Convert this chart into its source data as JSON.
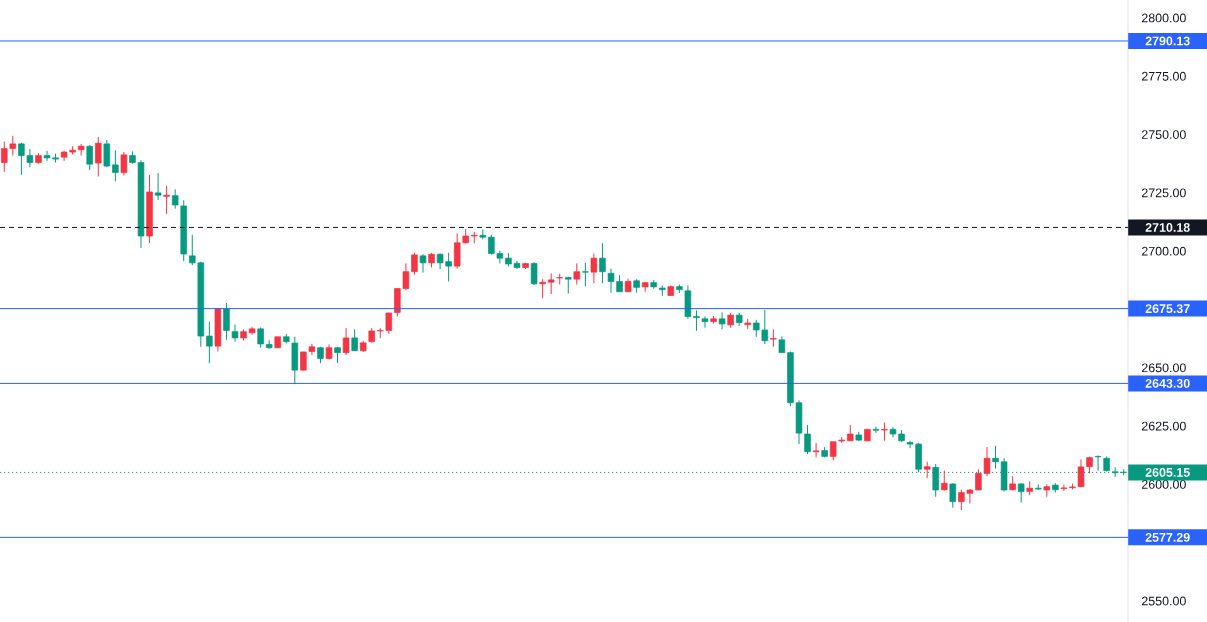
{
  "chart_data": {
    "type": "candlestick",
    "categories": [
      null,
      null,
      null,
      null,
      null,
      null,
      null,
      null,
      null,
      null,
      null,
      null,
      null,
      null,
      null,
      null,
      null,
      null,
      null,
      null,
      null,
      null,
      null,
      null,
      null,
      null,
      null,
      null,
      null,
      null,
      null,
      null,
      null,
      null,
      null,
      null,
      null,
      null,
      null,
      null,
      null,
      null,
      null,
      null,
      null,
      null,
      null,
      null,
      null,
      null,
      null,
      null,
      null,
      null,
      null,
      null,
      null,
      null,
      null,
      null,
      null,
      null,
      null,
      null,
      null,
      null,
      null,
      null,
      null,
      null,
      null,
      null,
      null,
      null,
      null,
      null,
      null,
      null,
      null,
      null,
      null,
      null,
      null,
      null,
      null,
      null,
      null,
      null,
      null,
      null,
      null,
      null,
      null,
      null,
      null,
      null,
      null,
      null,
      null,
      null,
      null,
      null,
      null,
      null,
      null,
      null,
      null,
      null,
      null,
      null,
      null,
      null,
      null,
      null,
      null,
      null,
      null,
      null,
      null,
      null,
      null,
      null,
      null,
      null,
      null,
      null,
      null,
      null,
      null,
      null,
      null,
      null
    ],
    "ohlc": [
      [
        2738,
        2747,
        2734,
        2744
      ],
      [
        2744,
        2749.5,
        2741,
        2746
      ],
      [
        2746,
        2746.5,
        2732.7,
        2741
      ],
      [
        2741,
        2743.8,
        2736,
        2738
      ],
      [
        2738,
        2742,
        2737.5,
        2741
      ],
      [
        2741,
        2743,
        2738.7,
        2740
      ],
      [
        2740,
        2741.8,
        2738,
        2739.5
      ],
      [
        2740.3,
        2743,
        2738.7,
        2742.5
      ],
      [
        2742.5,
        2745,
        2741.5,
        2743.3
      ],
      [
        2743.5,
        2746,
        2741,
        2745
      ],
      [
        2745,
        2745.5,
        2734.8,
        2737.3
      ],
      [
        2737.8,
        2749,
        2732,
        2746.3
      ],
      [
        2746,
        2747.7,
        2736,
        2736.5
      ],
      [
        2737,
        2743.3,
        2730,
        2733.7
      ],
      [
        2733.7,
        2742.5,
        2732.5,
        2741.3
      ],
      [
        2741,
        2742.8,
        2737.5,
        2738
      ],
      [
        2738,
        2739,
        2701.4,
        2706.5
      ],
      [
        2706.5,
        2732.7,
        2703.5,
        2725.4
      ],
      [
        2725,
        2733.5,
        2722,
        2724
      ],
      [
        2723.5,
        2728,
        2716,
        2724
      ],
      [
        2723.8,
        2726.5,
        2718.2,
        2719.8
      ],
      [
        2719.4,
        2721.8,
        2695.7,
        2698.8
      ],
      [
        2698,
        2707,
        2694,
        2695
      ],
      [
        2695,
        2695.5,
        2659,
        2663.6
      ],
      [
        2663.6,
        2669.8,
        2652,
        2659.3
      ],
      [
        2659.3,
        2675.2,
        2657,
        2675.2
      ],
      [
        2675.2,
        2677.8,
        2662,
        2666
      ],
      [
        2665.5,
        2668.6,
        2661.2,
        2662.8
      ],
      [
        2662.8,
        2666.5,
        2661.7,
        2665.5
      ],
      [
        2665,
        2667.5,
        2664.2,
        2666.7
      ],
      [
        2666.7,
        2667.3,
        2658.6,
        2660.2
      ],
      [
        2660,
        2661.8,
        2658.2,
        2658.6
      ],
      [
        2658.6,
        2663.3,
        2658.4,
        2663.3
      ],
      [
        2663.3,
        2664.5,
        2660.5,
        2661.2
      ],
      [
        2660.6,
        2663.3,
        2643,
        2649
      ],
      [
        2649,
        2656.8,
        2648.8,
        2656.8
      ],
      [
        2657,
        2660.3,
        2655.5,
        2659
      ],
      [
        2658.6,
        2659,
        2652,
        2654
      ],
      [
        2654,
        2660,
        2653.5,
        2658.6
      ],
      [
        2658.6,
        2659,
        2652,
        2656.5
      ],
      [
        2656.5,
        2667,
        2655.5,
        2662.8
      ],
      [
        2662.8,
        2666.5,
        2657.3,
        2657.3
      ],
      [
        2657.3,
        2661.5,
        2656.8,
        2660.7
      ],
      [
        2661.2,
        2667,
        2660.8,
        2665.8
      ],
      [
        2665.8,
        2667,
        2662.7,
        2666
      ],
      [
        2666,
        2673.6,
        2664.6,
        2673.5
      ],
      [
        2673.7,
        2684,
        2672,
        2684
      ],
      [
        2684,
        2694.8,
        2683.3,
        2691.2
      ],
      [
        2691.2,
        2699.3,
        2689.9,
        2698.4
      ],
      [
        2698,
        2698.7,
        2690.8,
        2695
      ],
      [
        2695,
        2699.3,
        2693,
        2698.7
      ],
      [
        2698.7,
        2699,
        2692.3,
        2695
      ],
      [
        2695.5,
        2699.3,
        2687,
        2693.6
      ],
      [
        2693.6,
        2707.6,
        2692.5,
        2703.6
      ],
      [
        2703.6,
        2709.5,
        2703.3,
        2706.5
      ],
      [
        2706.5,
        2708.3,
        2703.3,
        2706.8
      ],
      [
        2706.8,
        2709.3,
        2705,
        2706
      ],
      [
        2706,
        2707,
        2698.5,
        2699
      ],
      [
        2699,
        2700.2,
        2694.8,
        2697
      ],
      [
        2697,
        2699.2,
        2693.5,
        2694.5
      ],
      [
        2694.8,
        2695.8,
        2692.4,
        2693
      ],
      [
        2693,
        2695,
        2692.4,
        2694.7
      ],
      [
        2694.7,
        2695.3,
        2685.5,
        2686
      ],
      [
        2686,
        2688,
        2679.8,
        2686.7
      ],
      [
        2686.7,
        2690.5,
        2681.6,
        2687.7
      ],
      [
        2688.5,
        2690.3,
        2685.7,
        2688.7
      ],
      [
        2688.7,
        2689,
        2681.8,
        2688
      ],
      [
        2688,
        2694.8,
        2685.7,
        2691.2
      ],
      [
        2691.2,
        2695,
        2685,
        2691
      ],
      [
        2691,
        2699,
        2686.3,
        2697
      ],
      [
        2697,
        2703.4,
        2686.3,
        2691.2
      ],
      [
        2690.5,
        2692.5,
        2682.2,
        2687
      ],
      [
        2687,
        2689.7,
        2682.6,
        2682.6
      ],
      [
        2682.6,
        2688.2,
        2682.6,
        2687
      ],
      [
        2687.3,
        2688,
        2682.2,
        2684.5
      ],
      [
        2684.7,
        2686.8,
        2682.6,
        2686.5
      ],
      [
        2686.5,
        2687.6,
        2683.9,
        2684.7
      ],
      [
        2684.2,
        2685.3,
        2680.8,
        2683.5
      ],
      [
        2681,
        2685.3,
        2681,
        2684.8
      ],
      [
        2684.8,
        2685.7,
        2682,
        2683.5
      ],
      [
        2683,
        2685.3,
        2671,
        2672
      ],
      [
        2672,
        2674.6,
        2665.8,
        2671.5
      ],
      [
        2671,
        2672,
        2667.2,
        2669.8
      ],
      [
        2669.8,
        2672.2,
        2669,
        2671
      ],
      [
        2671,
        2673.7,
        2666.5,
        2668.8
      ],
      [
        2668.4,
        2673.5,
        2667.2,
        2672.6
      ],
      [
        2672.6,
        2673.5,
        2668,
        2669.4
      ],
      [
        2668.5,
        2671,
        2666.7,
        2669.2
      ],
      [
        2669.2,
        2670.6,
        2663.3,
        2666.2
      ],
      [
        2666.2,
        2674.8,
        2660.2,
        2661.6
      ],
      [
        2662.3,
        2666.5,
        2659,
        2662.6
      ],
      [
        2662,
        2663.5,
        2656.5,
        2656.5
      ],
      [
        2656.5,
        2657,
        2633.6,
        2635
      ],
      [
        2635,
        2636,
        2617.3,
        2622
      ],
      [
        2621.6,
        2625.5,
        2613,
        2614
      ],
      [
        2614,
        2617.7,
        2611.6,
        2614.4
      ],
      [
        2614.5,
        2616,
        2611.6,
        2612
      ],
      [
        2612,
        2618.3,
        2610.3,
        2618.3
      ],
      [
        2618.6,
        2620.3,
        2617.7,
        2619
      ],
      [
        2618.7,
        2625.5,
        2618.7,
        2621.6
      ],
      [
        2621.2,
        2622.6,
        2618.5,
        2619
      ],
      [
        2618.7,
        2623.6,
        2618.5,
        2623.6
      ],
      [
        2623.6,
        2624.7,
        2622.1,
        2623.2
      ],
      [
        2623.3,
        2626.5,
        2618.7,
        2623.6
      ],
      [
        2623.6,
        2624.5,
        2620.2,
        2621.6
      ],
      [
        2621.6,
        2623.3,
        2618.3,
        2618.7
      ],
      [
        2618,
        2618.7,
        2615.5,
        2617.3
      ],
      [
        2617.3,
        2617.8,
        2605.2,
        2606.5
      ],
      [
        2606.5,
        2609.7,
        2602.7,
        2607.6
      ],
      [
        2607.3,
        2608.7,
        2594.7,
        2597.6
      ],
      [
        2597.7,
        2605.9,
        2597.3,
        2600.5
      ],
      [
        2600.2,
        2600.5,
        2590,
        2592.6
      ],
      [
        2592.6,
        2597.7,
        2589,
        2596.5
      ],
      [
        2596.2,
        2598,
        2591.8,
        2597.6
      ],
      [
        2597.6,
        2606.5,
        2597.5,
        2604.7
      ],
      [
        2604.7,
        2616,
        2603.5,
        2611.2
      ],
      [
        2611.2,
        2616.5,
        2606.8,
        2609.7
      ],
      [
        2609.7,
        2611.2,
        2597,
        2597.6
      ],
      [
        2597.7,
        2603.5,
        2597.5,
        2600.2
      ],
      [
        2600.2,
        2600.5,
        2592.2,
        2596.9
      ],
      [
        2597,
        2601.3,
        2595.4,
        2598.4
      ],
      [
        2598.4,
        2600,
        2597.7,
        2598
      ],
      [
        2597.6,
        2600,
        2594.7,
        2599
      ],
      [
        2599.7,
        2600.5,
        2596.5,
        2597.7
      ],
      [
        2598.2,
        2599.9,
        2597.2,
        2598.5
      ],
      [
        2598.6,
        2600.3,
        2597.8,
        2598.9
      ],
      [
        2599,
        2610.7,
        2598.8,
        2607.5
      ],
      [
        2607.6,
        2611.9,
        2604.7,
        2611.5
      ],
      [
        2612,
        2612.4,
        2605.9,
        2611.8
      ],
      [
        2611.2,
        2612,
        2605.5,
        2605.9
      ],
      [
        2605.4,
        2607.3,
        2603.2,
        2605
      ],
      [
        2605.2,
        2606.5,
        2603.9,
        2605.15
      ]
    ],
    "colors": [
      "#f23645",
      "#f23645",
      "#089981",
      "#089981",
      "#f23645",
      "#089981",
      "#089981",
      "#f23645",
      "#f23645",
      "#f23645",
      "#089981",
      "#f23645",
      "#089981",
      "#089981",
      "#f23645",
      "#089981",
      "#089981",
      "#f23645",
      "#089981",
      "#f23645",
      "#089981",
      "#089981",
      "#089981",
      "#089981",
      "#089981",
      "#f23645",
      "#089981",
      "#089981",
      "#f23645",
      "#f23645",
      "#089981",
      "#089981",
      "#f23645",
      "#089981",
      "#089981",
      "#f23645",
      "#f23645",
      "#089981",
      "#f23645",
      "#089981",
      "#f23645",
      "#089981",
      "#f23645",
      "#f23645",
      "#f23645",
      "#f23645",
      "#f23645",
      "#f23645",
      "#f23645",
      "#089981",
      "#f23645",
      "#089981",
      "#089981",
      "#f23645",
      "#f23645",
      "#f23645",
      "#089981",
      "#089981",
      "#089981",
      "#089981",
      "#089981",
      "#f23645",
      "#089981",
      "#f23645",
      "#f23645",
      "#f23645",
      "#089981",
      "#f23645",
      "#089981",
      "#f23645",
      "#089981",
      "#089981",
      "#089981",
      "#f23645",
      "#089981",
      "#f23645",
      "#089981",
      "#089981",
      "#f23645",
      "#089981",
      "#089981",
      "#089981",
      "#089981",
      "#f23645",
      "#089981",
      "#f23645",
      "#089981",
      "#f23645",
      "#089981",
      "#089981",
      "#f23645",
      "#089981",
      "#089981",
      "#089981",
      "#089981",
      "#f23645",
      "#089981",
      "#f23645",
      "#f23645",
      "#f23645",
      "#089981",
      "#f23645",
      "#089981",
      "#f23645",
      "#089981",
      "#089981",
      "#089981",
      "#089981",
      "#f23645",
      "#089981",
      "#f23645",
      "#089981",
      "#f23645",
      "#f23645",
      "#f23645",
      "#f23645",
      "#089981",
      "#089981",
      "#f23645",
      "#089981",
      "#f23645",
      "#089981",
      "#f23645",
      "#089981",
      "#f23645",
      "#f23645",
      "#f23645",
      "#f23645",
      "#089981",
      "#089981",
      "#089981",
      "#089981"
    ],
    "ylim": [
      2541,
      2807.7
    ],
    "yticks": [
      {
        "value": 2550,
        "label": "2550.00"
      },
      {
        "value": 2600,
        "label": "2600.00"
      },
      {
        "value": 2625,
        "label": "2625.00"
      },
      {
        "value": 2650,
        "label": "2650.00"
      },
      {
        "value": 2700,
        "label": "2700.00"
      },
      {
        "value": 2725,
        "label": "2725.00"
      },
      {
        "value": 2750,
        "label": "2750.00"
      },
      {
        "value": 2775,
        "label": "2775.00"
      },
      {
        "value": 2800,
        "label": "2800.00"
      }
    ],
    "ref_lines": [
      {
        "axis": "y",
        "value": 2790.13,
        "label": "2790.13",
        "color": "#2962ff",
        "line_style": "solid"
      },
      {
        "axis": "y",
        "value": 2710.18,
        "label": "2710.18",
        "color": "#131722",
        "line_style": "dashed"
      },
      {
        "axis": "y",
        "value": 2675.37,
        "label": "2675.37",
        "color": "#2962ff",
        "line_style": "solid"
      },
      {
        "axis": "y",
        "value": 2643.3,
        "label": "2643.30",
        "color": "#2962ff",
        "line_style": "solid"
      },
      {
        "axis": "y",
        "value": 2605.15,
        "label": "2605.15",
        "color": "#089981",
        "line_style": "dotted"
      },
      {
        "axis": "y",
        "value": 2577.29,
        "label": "2577.29",
        "color": "#2962ff",
        "line_style": "solid"
      }
    ]
  }
}
